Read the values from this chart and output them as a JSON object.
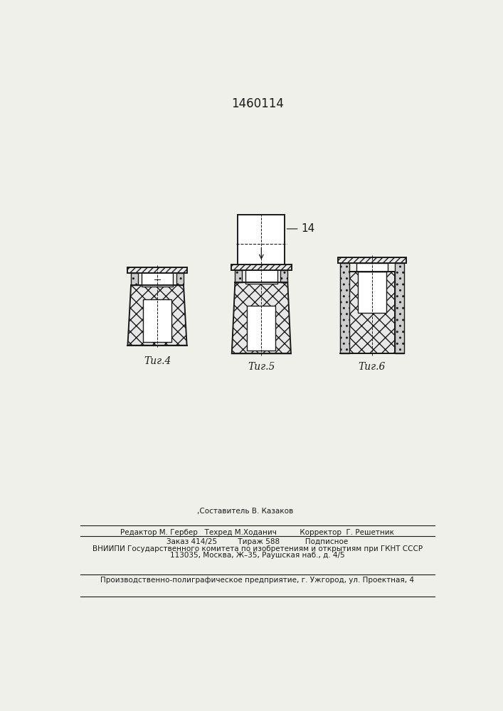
{
  "patent_number": "1460114",
  "fig4_label": "Τиг.4",
  "fig5_label": "Τиг.5",
  "fig6_label": "Τиг.6",
  "label_14": "14",
  "text_sostavitel": ",Составитель В. Казаков",
  "text_redaktor": "Редактор М. Гербер   Техред М.Ходанич          Корректор  Г. Решетник",
  "text_zakaz": "Заказ 414/25         Тираж 588           Подписное",
  "text_vniipи": "ВНИИПИ Государственного комитета по изобретениям и открытиям при ГКНТ СССР",
  "text_address": "113035, Москва, Ж–35, Раушская наб., д. 4/5",
  "text_production": "Производственно-полиграфическое предприятие, г. Ужгород, ул. Проектная, 4",
  "bg_color": "#f0f0eb",
  "line_color": "#1a1a1a"
}
